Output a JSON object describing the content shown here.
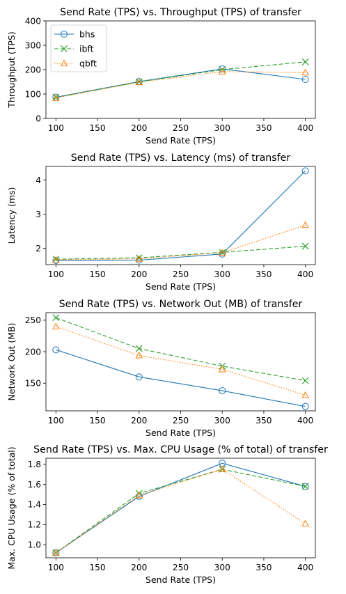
{
  "series_style": {
    "bhs": {
      "color": "#1f77b4",
      "dash": "",
      "marker": "circle"
    },
    "ibft": {
      "color": "#2ca02c",
      "dash": "6,3",
      "marker": "x"
    },
    "qbft": {
      "color": "#ff7f0e",
      "dash": "1.5,2",
      "marker": "triangle"
    }
  },
  "chart_data": [
    {
      "type": "line",
      "title": "Send Rate (TPS) vs. Throughput (TPS) of transfer",
      "xlabel": "Send Rate (TPS)",
      "ylabel": "Throughput (TPS)",
      "x": [
        100,
        200,
        300,
        400
      ],
      "xlim": [
        88,
        412
      ],
      "ylim": [
        0,
        400
      ],
      "xticks": [
        "100",
        "150",
        "200",
        "250",
        "300",
        "350",
        "400"
      ],
      "xtick_values": [
        100,
        150,
        200,
        250,
        300,
        350,
        400
      ],
      "yticks": [
        "0",
        "100",
        "200",
        "300",
        "400"
      ],
      "ytick_values": [
        0,
        100,
        200,
        300,
        400
      ],
      "legend": "top-left",
      "series": [
        {
          "name": "bhs",
          "values": [
            87,
            151,
            203,
            160
          ]
        },
        {
          "name": "ibft",
          "values": [
            86,
            150,
            200,
            232
          ]
        },
        {
          "name": "qbft",
          "values": [
            84,
            148,
            192,
            188
          ]
        }
      ]
    },
    {
      "type": "line",
      "title": "Send Rate (TPS) vs. Latency (ms) of transfer",
      "xlabel": "Send Rate (TPS)",
      "ylabel": "Latency (ms)",
      "x": [
        100,
        200,
        300,
        400
      ],
      "xlim": [
        88,
        412
      ],
      "ylim": [
        1.52,
        4.4
      ],
      "xticks": [
        "100",
        "150",
        "200",
        "250",
        "300",
        "350",
        "400"
      ],
      "xtick_values": [
        100,
        150,
        200,
        250,
        300,
        350,
        400
      ],
      "yticks": [
        "2",
        "3",
        "4"
      ],
      "ytick_values": [
        2,
        3,
        4
      ],
      "series": [
        {
          "name": "bhs",
          "values": [
            1.64,
            1.65,
            1.83,
            4.27
          ]
        },
        {
          "name": "ibft",
          "values": [
            1.68,
            1.72,
            1.88,
            2.06
          ]
        },
        {
          "name": "qbft",
          "values": [
            1.66,
            1.69,
            1.87,
            2.68
          ]
        }
      ]
    },
    {
      "type": "line",
      "title": "Send Rate (TPS) vs. Network Out (MB) of transfer",
      "xlabel": "Send Rate (TPS)",
      "ylabel": "Network Out (MB)",
      "x": [
        100,
        200,
        300,
        400
      ],
      "xlim": [
        88,
        412
      ],
      "ylim": [
        106,
        262
      ],
      "xticks": [
        "100",
        "150",
        "200",
        "250",
        "300",
        "350",
        "400"
      ],
      "xtick_values": [
        100,
        150,
        200,
        250,
        300,
        350,
        400
      ],
      "yticks": [
        "150",
        "200",
        "250"
      ],
      "ytick_values": [
        150,
        200,
        250
      ],
      "series": [
        {
          "name": "bhs",
          "values": [
            203,
            160,
            138,
            113
          ]
        },
        {
          "name": "ibft",
          "values": [
            254,
            205,
            177,
            154
          ]
        },
        {
          "name": "qbft",
          "values": [
            240,
            194,
            172,
            131
          ]
        }
      ]
    },
    {
      "type": "line",
      "title": "Send Rate (TPS) vs. Max. CPU Usage (% of total) of transfer",
      "xlabel": "Send Rate (TPS)",
      "ylabel": "Max. CPU Usage (% of total)",
      "x": [
        100,
        200,
        300,
        400
      ],
      "xlim": [
        88,
        412
      ],
      "ylim": [
        0.87,
        1.86
      ],
      "xticks": [
        "100",
        "150",
        "200",
        "250",
        "300",
        "350",
        "400"
      ],
      "xtick_values": [
        100,
        150,
        200,
        250,
        300,
        350,
        400
      ],
      "yticks": [
        "1.0",
        "1.2",
        "1.4",
        "1.6",
        "1.8"
      ],
      "ytick_values": [
        1.0,
        1.2,
        1.4,
        1.6,
        1.8
      ],
      "series": [
        {
          "name": "bhs",
          "values": [
            0.92,
            1.48,
            1.81,
            1.58
          ]
        },
        {
          "name": "ibft",
          "values": [
            0.92,
            1.51,
            1.75,
            1.58
          ]
        },
        {
          "name": "qbft",
          "values": [
            0.92,
            1.49,
            1.75,
            1.21
          ]
        }
      ]
    }
  ]
}
